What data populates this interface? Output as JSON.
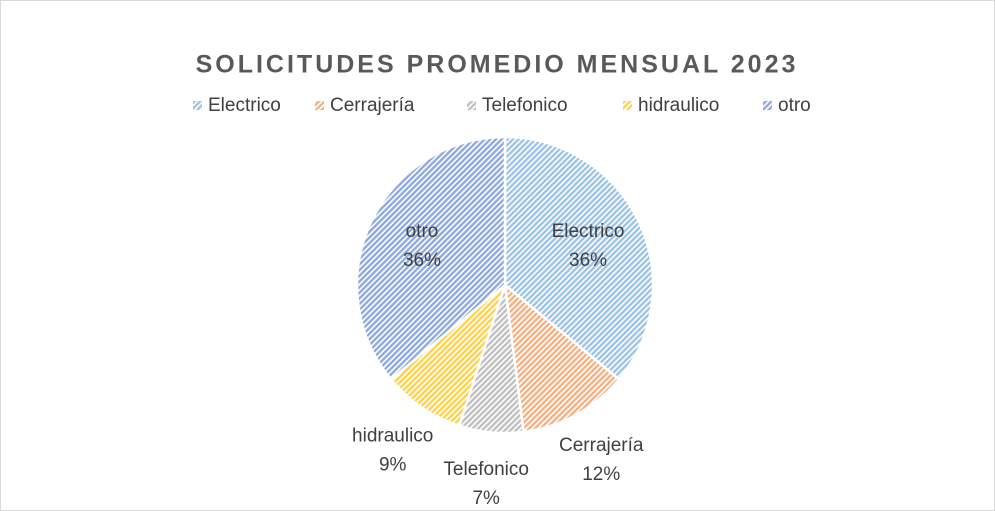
{
  "chart_data": {
    "type": "pie",
    "title": "SOLICITUDES PROMEDIO MENSUAL 2023",
    "categories": [
      "Electrico",
      "Cerrajería",
      "Telefonico",
      "hidraulico",
      "otro"
    ],
    "values": [
      36,
      12,
      7,
      9,
      36
    ],
    "value_labels": [
      "36%",
      "12%",
      "7%",
      "9%",
      "36%"
    ],
    "colors": [
      "#9dc3e6",
      "#f4b183",
      "#c0c0c0",
      "#ffd24d",
      "#8faadc"
    ],
    "legend": "top"
  }
}
